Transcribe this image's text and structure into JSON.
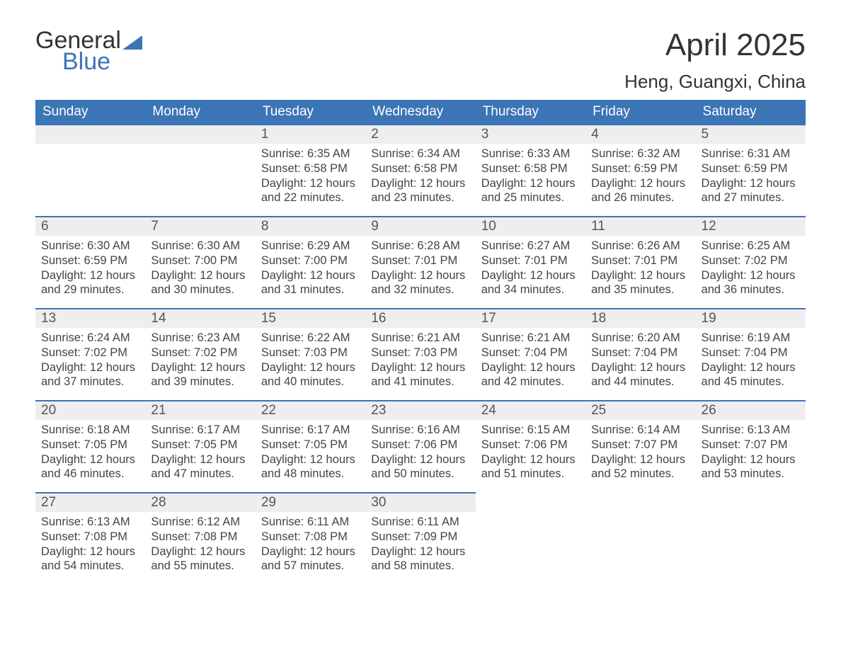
{
  "logo": {
    "word1": "General",
    "word2": "Blue"
  },
  "title": "April 2025",
  "location": "Heng, Guangxi, China",
  "colors": {
    "accent": "#3b75b6",
    "header_bg": "#3b75b6",
    "header_text": "#ffffff",
    "daynum_bg": "#eeeeee",
    "body_text": "#444444",
    "title_text": "#333333"
  },
  "weekdays": [
    "Sunday",
    "Monday",
    "Tuesday",
    "Wednesday",
    "Thursday",
    "Friday",
    "Saturday"
  ],
  "weeks": [
    [
      null,
      null,
      {
        "n": "1",
        "sunrise": "Sunrise: 6:35 AM",
        "sunset": "Sunset: 6:58 PM",
        "daylight": "Daylight: 12 hours and 22 minutes."
      },
      {
        "n": "2",
        "sunrise": "Sunrise: 6:34 AM",
        "sunset": "Sunset: 6:58 PM",
        "daylight": "Daylight: 12 hours and 23 minutes."
      },
      {
        "n": "3",
        "sunrise": "Sunrise: 6:33 AM",
        "sunset": "Sunset: 6:58 PM",
        "daylight": "Daylight: 12 hours and 25 minutes."
      },
      {
        "n": "4",
        "sunrise": "Sunrise: 6:32 AM",
        "sunset": "Sunset: 6:59 PM",
        "daylight": "Daylight: 12 hours and 26 minutes."
      },
      {
        "n": "5",
        "sunrise": "Sunrise: 6:31 AM",
        "sunset": "Sunset: 6:59 PM",
        "daylight": "Daylight: 12 hours and 27 minutes."
      }
    ],
    [
      {
        "n": "6",
        "sunrise": "Sunrise: 6:30 AM",
        "sunset": "Sunset: 6:59 PM",
        "daylight": "Daylight: 12 hours and 29 minutes."
      },
      {
        "n": "7",
        "sunrise": "Sunrise: 6:30 AM",
        "sunset": "Sunset: 7:00 PM",
        "daylight": "Daylight: 12 hours and 30 minutes."
      },
      {
        "n": "8",
        "sunrise": "Sunrise: 6:29 AM",
        "sunset": "Sunset: 7:00 PM",
        "daylight": "Daylight: 12 hours and 31 minutes."
      },
      {
        "n": "9",
        "sunrise": "Sunrise: 6:28 AM",
        "sunset": "Sunset: 7:01 PM",
        "daylight": "Daylight: 12 hours and 32 minutes."
      },
      {
        "n": "10",
        "sunrise": "Sunrise: 6:27 AM",
        "sunset": "Sunset: 7:01 PM",
        "daylight": "Daylight: 12 hours and 34 minutes."
      },
      {
        "n": "11",
        "sunrise": "Sunrise: 6:26 AM",
        "sunset": "Sunset: 7:01 PM",
        "daylight": "Daylight: 12 hours and 35 minutes."
      },
      {
        "n": "12",
        "sunrise": "Sunrise: 6:25 AM",
        "sunset": "Sunset: 7:02 PM",
        "daylight": "Daylight: 12 hours and 36 minutes."
      }
    ],
    [
      {
        "n": "13",
        "sunrise": "Sunrise: 6:24 AM",
        "sunset": "Sunset: 7:02 PM",
        "daylight": "Daylight: 12 hours and 37 minutes."
      },
      {
        "n": "14",
        "sunrise": "Sunrise: 6:23 AM",
        "sunset": "Sunset: 7:02 PM",
        "daylight": "Daylight: 12 hours and 39 minutes."
      },
      {
        "n": "15",
        "sunrise": "Sunrise: 6:22 AM",
        "sunset": "Sunset: 7:03 PM",
        "daylight": "Daylight: 12 hours and 40 minutes."
      },
      {
        "n": "16",
        "sunrise": "Sunrise: 6:21 AM",
        "sunset": "Sunset: 7:03 PM",
        "daylight": "Daylight: 12 hours and 41 minutes."
      },
      {
        "n": "17",
        "sunrise": "Sunrise: 6:21 AM",
        "sunset": "Sunset: 7:04 PM",
        "daylight": "Daylight: 12 hours and 42 minutes."
      },
      {
        "n": "18",
        "sunrise": "Sunrise: 6:20 AM",
        "sunset": "Sunset: 7:04 PM",
        "daylight": "Daylight: 12 hours and 44 minutes."
      },
      {
        "n": "19",
        "sunrise": "Sunrise: 6:19 AM",
        "sunset": "Sunset: 7:04 PM",
        "daylight": "Daylight: 12 hours and 45 minutes."
      }
    ],
    [
      {
        "n": "20",
        "sunrise": "Sunrise: 6:18 AM",
        "sunset": "Sunset: 7:05 PM",
        "daylight": "Daylight: 12 hours and 46 minutes."
      },
      {
        "n": "21",
        "sunrise": "Sunrise: 6:17 AM",
        "sunset": "Sunset: 7:05 PM",
        "daylight": "Daylight: 12 hours and 47 minutes."
      },
      {
        "n": "22",
        "sunrise": "Sunrise: 6:17 AM",
        "sunset": "Sunset: 7:05 PM",
        "daylight": "Daylight: 12 hours and 48 minutes."
      },
      {
        "n": "23",
        "sunrise": "Sunrise: 6:16 AM",
        "sunset": "Sunset: 7:06 PM",
        "daylight": "Daylight: 12 hours and 50 minutes."
      },
      {
        "n": "24",
        "sunrise": "Sunrise: 6:15 AM",
        "sunset": "Sunset: 7:06 PM",
        "daylight": "Daylight: 12 hours and 51 minutes."
      },
      {
        "n": "25",
        "sunrise": "Sunrise: 6:14 AM",
        "sunset": "Sunset: 7:07 PM",
        "daylight": "Daylight: 12 hours and 52 minutes."
      },
      {
        "n": "26",
        "sunrise": "Sunrise: 6:13 AM",
        "sunset": "Sunset: 7:07 PM",
        "daylight": "Daylight: 12 hours and 53 minutes."
      }
    ],
    [
      {
        "n": "27",
        "sunrise": "Sunrise: 6:13 AM",
        "sunset": "Sunset: 7:08 PM",
        "daylight": "Daylight: 12 hours and 54 minutes."
      },
      {
        "n": "28",
        "sunrise": "Sunrise: 6:12 AM",
        "sunset": "Sunset: 7:08 PM",
        "daylight": "Daylight: 12 hours and 55 minutes."
      },
      {
        "n": "29",
        "sunrise": "Sunrise: 6:11 AM",
        "sunset": "Sunset: 7:08 PM",
        "daylight": "Daylight: 12 hours and 57 minutes."
      },
      {
        "n": "30",
        "sunrise": "Sunrise: 6:11 AM",
        "sunset": "Sunset: 7:09 PM",
        "daylight": "Daylight: 12 hours and 58 minutes."
      },
      null,
      null,
      null
    ]
  ]
}
